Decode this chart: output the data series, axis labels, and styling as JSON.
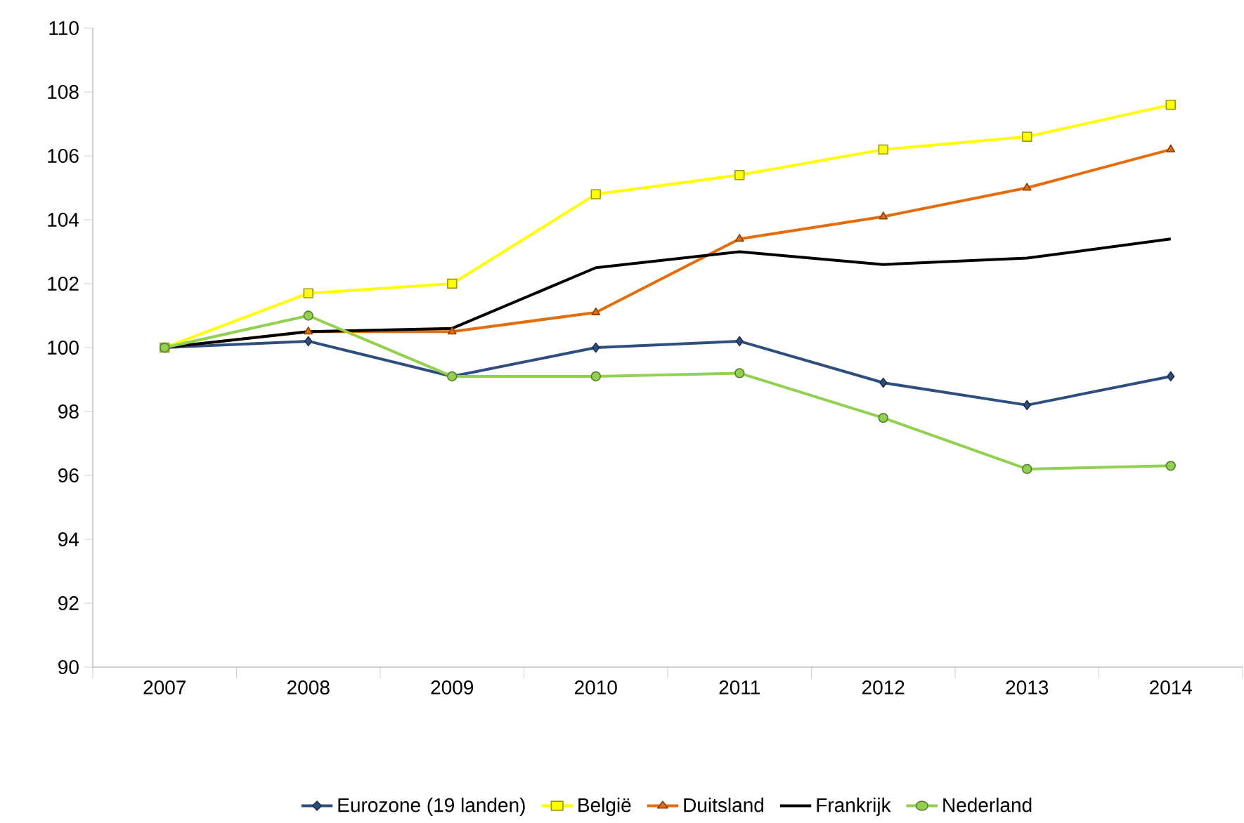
{
  "chart_data": {
    "type": "line",
    "categories": [
      "2007",
      "2008",
      "2009",
      "2010",
      "2011",
      "2012",
      "2013",
      "2014"
    ],
    "ylim": [
      90,
      110
    ],
    "yticks": [
      90,
      92,
      94,
      96,
      98,
      100,
      102,
      104,
      106,
      108,
      110
    ],
    "grid": false,
    "legend": "bottom",
    "series": [
      {
        "name": "Eurozone (19 landen)",
        "color": "#2e4e7e",
        "marker": "diamond",
        "values": [
          100,
          100.2,
          99.1,
          100.0,
          100.2,
          98.9,
          98.2,
          99.1
        ]
      },
      {
        "name": "België",
        "color": "#ffff00",
        "marker": "square",
        "values": [
          100,
          101.7,
          102.0,
          104.8,
          105.4,
          106.2,
          106.6,
          107.6
        ]
      },
      {
        "name": "Duitsland",
        "color": "#e46c0a",
        "marker": "triangle",
        "values": [
          100,
          100.5,
          100.5,
          101.1,
          103.4,
          104.1,
          105.0,
          106.2
        ]
      },
      {
        "name": "Frankrijk",
        "color": "#000000",
        "marker": "none",
        "values": [
          100,
          100.5,
          100.6,
          102.5,
          103.0,
          102.6,
          102.8,
          103.4
        ]
      },
      {
        "name": "Nederland",
        "color": "#92d050",
        "marker": "circle",
        "values": [
          100,
          101.0,
          99.1,
          99.1,
          99.2,
          97.8,
          96.2,
          96.3
        ]
      }
    ]
  }
}
